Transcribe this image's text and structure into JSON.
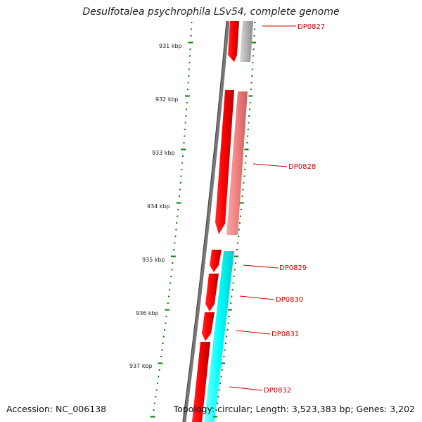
{
  "title": "Desulfotalea psychrophila LSv54, complete genome",
  "accession": "Accession: NC_006138",
  "summary": "Topology: circular; Length: 3,523,383 bp; Genes: 3,202",
  "kbp_labels": [
    "931 kbp",
    "932 kbp",
    "933 kbp",
    "934 kbp",
    "935 kbp",
    "936 kbp",
    "937 kbp"
  ],
  "genes": [
    {
      "id": "DP0827",
      "color": "#ff0000"
    },
    {
      "id": "DP0828",
      "color": "#ff0000"
    },
    {
      "id": "DP0829",
      "color": "#ff0000"
    },
    {
      "id": "DP0830",
      "color": "#ff0000"
    },
    {
      "id": "DP0831",
      "color": "#ff0000"
    },
    {
      "id": "DP0832",
      "color": "#ff0000"
    }
  ],
  "colors": {
    "cds": "#ff0000",
    "homolog_grey": "#b0b0b0",
    "homolog_pink": "#f08080",
    "homolog_cyan": "#00ffff",
    "backbone": "#777777",
    "ticks": "#008000",
    "label": "#cc0000"
  }
}
